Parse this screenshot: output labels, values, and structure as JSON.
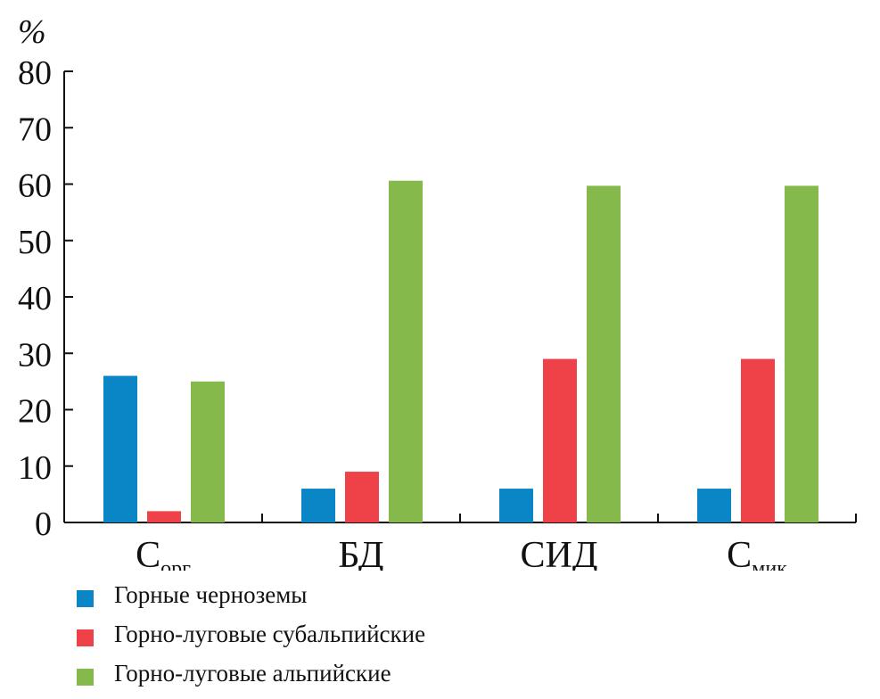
{
  "chart_data": {
    "type": "bar",
    "unit": "%",
    "categories": [
      {
        "text": "С",
        "sub": "орг"
      },
      {
        "text": "БД",
        "sub": ""
      },
      {
        "text": "СИД",
        "sub": ""
      },
      {
        "text": "С",
        "sub": "мик"
      }
    ],
    "series": [
      {
        "name": "Горные черноземы",
        "color": "#0a86c7",
        "values": [
          26,
          6,
          6,
          6
        ]
      },
      {
        "name": "Горно-луговые субальпийские",
        "color": "#ee4148",
        "values": [
          2,
          9,
          29,
          29
        ]
      },
      {
        "name": "Горно-луговые альпийские",
        "color": "#85b94b",
        "values": [
          25,
          60.6,
          59.7,
          59.7
        ]
      }
    ],
    "ylim": [
      0,
      80
    ],
    "yticks": [
      0,
      10,
      20,
      30,
      40,
      50,
      60,
      70,
      80
    ],
    "grid": false,
    "legend_position": "bottom-left"
  }
}
